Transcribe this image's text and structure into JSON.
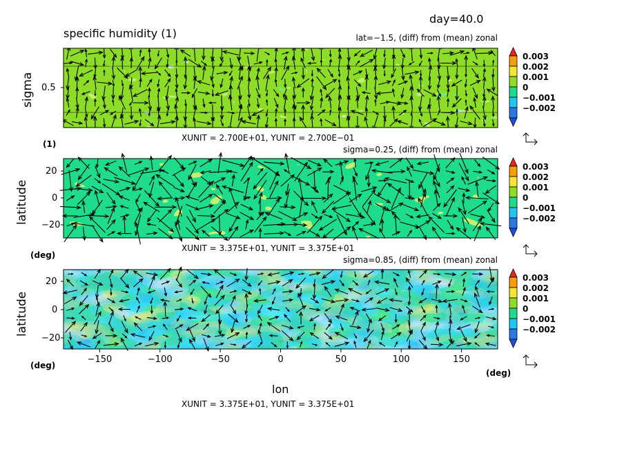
{
  "header": {
    "day_label": "day=40.0",
    "title": "specific humidity (1)"
  },
  "colorbar": {
    "levels": [
      "0.003",
      "0.002",
      "0.001",
      "0",
      "−0.001",
      "−0.002"
    ],
    "colors": [
      "#e6281e",
      "#f5a00a",
      "#f5e632",
      "#8cdc28",
      "#1edc8c",
      "#1ec8f0",
      "#2a78e6",
      "#1e50dc"
    ]
  },
  "chart_data": [
    {
      "type": "heatmap",
      "title": "lat=−1.5, (diff) from (mean) zonal",
      "ylabel": "sigma",
      "yunit_label": "(1)",
      "yticks": [
        "0.5"
      ],
      "xunit_text": "XUNIT = 2.700E+01, YUNIT = 2.700E−01",
      "field": "specific humidity difference from zonal mean",
      "vectors": true
    },
    {
      "type": "heatmap",
      "title": "sigma=0.25, (diff) from (mean) zonal",
      "ylabel": "latitude",
      "yunit_label": "(deg)",
      "yticks": [
        "20",
        "0",
        "−20"
      ],
      "ylim": [
        -30,
        30
      ],
      "xunit_text": "XUNIT = 3.375E+01, YUNIT = 3.375E+01",
      "field": "specific humidity difference from zonal mean",
      "vectors": true
    },
    {
      "type": "heatmap",
      "title": "sigma=0.85, (diff) from (mean) zonal",
      "ylabel": "latitude",
      "yunit_label": "(deg)",
      "yticks": [
        "20",
        "0",
        "−20"
      ],
      "ylim": [
        -30,
        30
      ],
      "xlabel": "lon",
      "xunit_label": "(deg)",
      "xticks": [
        "−150",
        "−100",
        "−50",
        "0",
        "50",
        "100",
        "150"
      ],
      "xtick_values": [
        -150,
        -100,
        -50,
        0,
        50,
        100,
        150
      ],
      "xlim": [
        -180,
        180
      ],
      "xunit_text": "XUNIT = 3.375E+01, YUNIT = 3.375E+01",
      "field": "specific humidity difference from zonal mean",
      "vectors": true
    }
  ]
}
